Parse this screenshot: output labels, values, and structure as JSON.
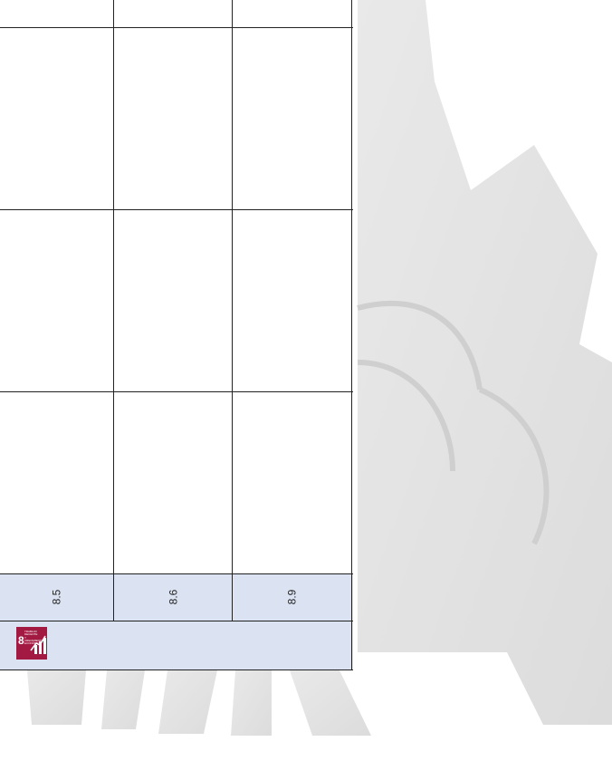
{
  "table": {
    "codes": [
      "8.5",
      "8.6",
      "8.9"
    ]
  },
  "icon": {
    "number": "8",
    "label": "TRABAJO DECENTE Y CRECIMIENTO ECONÓMICO"
  }
}
